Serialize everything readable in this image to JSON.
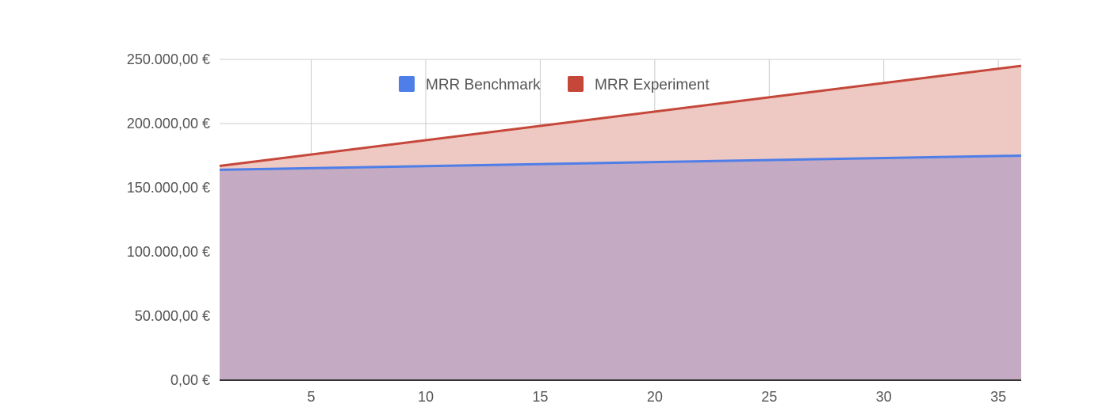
{
  "chart_data": {
    "type": "area",
    "x": [
      1,
      36
    ],
    "xlim": [
      1,
      36
    ],
    "ylim": [
      0,
      250000
    ],
    "x_ticks": [
      5,
      10,
      15,
      20,
      25,
      30,
      35
    ],
    "x_tick_labels": [
      "5",
      "10",
      "15",
      "20",
      "25",
      "30",
      "35"
    ],
    "y_ticks": [
      0,
      50000,
      100000,
      150000,
      200000,
      250000
    ],
    "y_tick_labels": [
      "0,00 €",
      "50.000,00 €",
      "100.000,00 €",
      "150.000,00 €",
      "200.000,00 €",
      "250.000,00 €"
    ],
    "grid": true,
    "legend_position": "top-center",
    "series": [
      {
        "name": "MRR Experiment",
        "color": "#c5473a",
        "fill": "#eec8c2",
        "values": [
          167000,
          245000
        ]
      },
      {
        "name": "MRR Benchmark",
        "color": "#4e7ee8",
        "fill": "#c4aac2",
        "values": [
          164000,
          175000
        ]
      }
    ],
    "legend": [
      {
        "label": "MRR Benchmark",
        "color": "#4e7ee8"
      },
      {
        "label": "MRR Experiment",
        "color": "#c5473a"
      }
    ]
  }
}
